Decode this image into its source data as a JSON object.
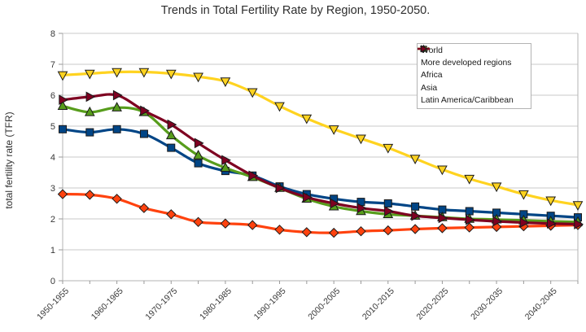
{
  "chart_data": {
    "type": "line",
    "title": "Trends in Total Fertility Rate by Region, 1950-2050.",
    "xlabel": "",
    "ylabel": "total fertility rate (TFR)",
    "ylim": [
      0,
      8
    ],
    "y_ticks": [
      0,
      1,
      2,
      3,
      4,
      5,
      6,
      7,
      8
    ],
    "grid": true,
    "legend_position": "top-right",
    "line_style": "smooth",
    "categories": [
      "1950-1955",
      "1955-1960",
      "1960-1965",
      "1965-1970",
      "1970-1975",
      "1975-1980",
      "1980-1985",
      "1985-1990",
      "1990-1995",
      "1995-2000",
      "2000-2005",
      "2005-2010",
      "2010-2015",
      "2015-2020",
      "2020-2025",
      "2025-2030",
      "2030-2035",
      "2035-2040",
      "2040-2045",
      "2045-2050"
    ],
    "x_tick_labels": [
      "1950-1955",
      "1960-1965",
      "1970-1975",
      "1980-1985",
      "1990-1995",
      "2000-2005",
      "2010-2015",
      "2020-2025",
      "2030-2035",
      "2040-2045"
    ],
    "x_label_every": 2,
    "series": [
      {
        "name": "World",
        "color": "#004586",
        "marker": "square",
        "values": [
          4.9,
          4.8,
          4.9,
          4.75,
          4.3,
          3.8,
          3.55,
          3.4,
          3.05,
          2.8,
          2.65,
          2.55,
          2.5,
          2.4,
          2.3,
          2.25,
          2.2,
          2.15,
          2.1,
          2.05
        ]
      },
      {
        "name": "More developed regions",
        "color": "#FF420E",
        "marker": "diamond",
        "values": [
          2.8,
          2.78,
          2.65,
          2.35,
          2.15,
          1.9,
          1.85,
          1.8,
          1.65,
          1.57,
          1.55,
          1.6,
          1.63,
          1.67,
          1.7,
          1.72,
          1.74,
          1.76,
          1.78,
          1.8
        ]
      },
      {
        "name": "Africa",
        "color": "#FFD320",
        "marker": "triangle-down",
        "values": [
          6.65,
          6.7,
          6.75,
          6.75,
          6.7,
          6.6,
          6.45,
          6.1,
          5.65,
          5.25,
          4.9,
          4.6,
          4.3,
          3.95,
          3.6,
          3.3,
          3.05,
          2.8,
          2.6,
          2.45
        ]
      },
      {
        "name": "Asia",
        "color": "#579D1C",
        "marker": "triangle-up",
        "values": [
          5.65,
          5.45,
          5.6,
          5.45,
          4.7,
          4.05,
          3.65,
          3.35,
          3.0,
          2.65,
          2.4,
          2.25,
          2.15,
          2.1,
          2.05,
          2.0,
          1.98,
          1.95,
          1.92,
          1.9
        ]
      },
      {
        "name": "Latin America/Caribbean",
        "color": "#7E0021",
        "marker": "triangle-right",
        "values": [
          5.85,
          5.95,
          6.0,
          5.5,
          5.05,
          4.45,
          3.9,
          3.4,
          3.0,
          2.7,
          2.5,
          2.35,
          2.25,
          2.1,
          2.03,
          1.97,
          1.92,
          1.88,
          1.85,
          1.83
        ]
      }
    ],
    "colors": {
      "grid": "#c9c9c9",
      "axis": "#b3b3b3",
      "tick": "#999999",
      "tick_text": "#383838",
      "title_text": "#2e2e2e",
      "marker_stroke": "#1a1a1a",
      "background": "#ffffff"
    }
  }
}
